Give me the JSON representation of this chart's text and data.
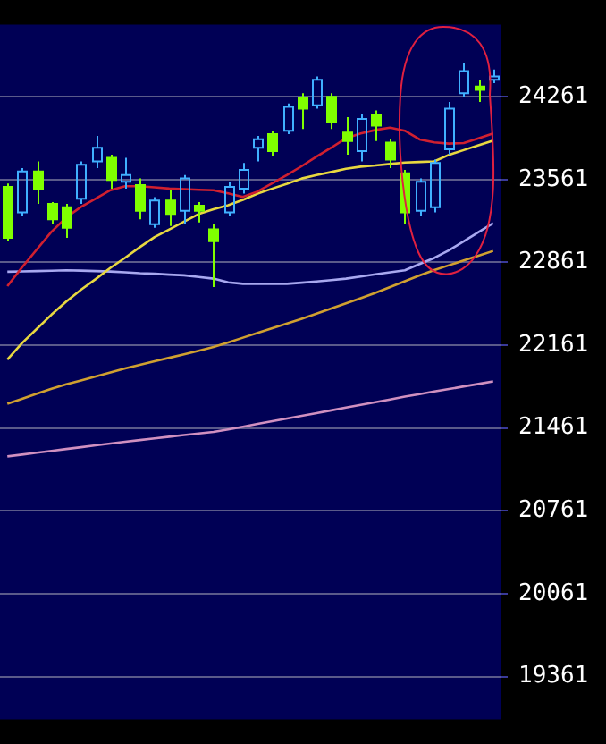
{
  "chart_data": {
    "type": "candlestick",
    "categories": [
      null,
      null,
      null,
      null,
      null,
      null,
      null,
      null,
      null,
      null,
      null,
      null,
      null,
      null,
      null,
      null,
      null,
      null,
      null,
      null,
      null,
      null,
      null,
      null,
      null,
      null,
      null,
      null,
      null,
      null,
      null,
      null,
      null,
      null
    ],
    "ohlc": [
      [
        23499,
        23528,
        23040,
        23068
      ],
      [
        23284,
        23658,
        23255,
        23629
      ],
      [
        23629,
        23715,
        23356,
        23485
      ],
      [
        23356,
        23370,
        23183,
        23226
      ],
      [
        23327,
        23356,
        23068,
        23154
      ],
      [
        23399,
        23715,
        23356,
        23686
      ],
      [
        23715,
        23930,
        23658,
        23830
      ],
      [
        23744,
        23772,
        23485,
        23557
      ],
      [
        23543,
        23744,
        23485,
        23600
      ],
      [
        23514,
        23571,
        23226,
        23298
      ],
      [
        23183,
        23413,
        23154,
        23384
      ],
      [
        23384,
        23471,
        23169,
        23270
      ],
      [
        23298,
        23600,
        23183,
        23571
      ],
      [
        23341,
        23370,
        23198,
        23298
      ],
      [
        23140,
        23183,
        22652,
        23040
      ],
      [
        23284,
        23543,
        23255,
        23499
      ],
      [
        23485,
        23701,
        23442,
        23643
      ],
      [
        23830,
        23930,
        23715,
        23902
      ],
      [
        23945,
        23974,
        23758,
        23801
      ],
      [
        23974,
        24204,
        23945,
        24175
      ],
      [
        24247,
        24290,
        23988,
        24160
      ],
      [
        24189,
        24433,
        24160,
        24405
      ],
      [
        24261,
        24290,
        23988,
        24045
      ],
      [
        23959,
        24089,
        23772,
        23887
      ],
      [
        23801,
        24117,
        23715,
        24074
      ],
      [
        24103,
        24146,
        23887,
        24017
      ],
      [
        23873,
        23902,
        23658,
        23729
      ],
      [
        23614,
        23643,
        23183,
        23284
      ],
      [
        23298,
        23571,
        23255,
        23543
      ],
      [
        23327,
        23729,
        23284,
        23701
      ],
      [
        23816,
        24218,
        23772,
        24160
      ],
      [
        24290,
        24548,
        24261,
        24477
      ],
      [
        24347,
        24405,
        24218,
        24319
      ],
      [
        24405,
        24491,
        24376,
        24433
      ]
    ],
    "colors": [
      "#80ff00",
      "#40b0ff",
      "#80ff00",
      "#80ff00",
      "#80ff00",
      "#40b0ff",
      "#40b0ff",
      "#80ff00",
      "#40b0ff",
      "#80ff00",
      "#40b0ff",
      "#80ff00",
      "#40b0ff",
      "#80ff00",
      "#80ff00",
      "#40b0ff",
      "#40b0ff",
      "#40b0ff",
      "#80ff00",
      "#40b0ff",
      "#80ff00",
      "#40b0ff",
      "#80ff00",
      "#80ff00",
      "#40b0ff",
      "#80ff00",
      "#80ff00",
      "#80ff00",
      "#40b0ff",
      "#40b0ff",
      "#40b0ff",
      "#40b0ff",
      "#80ff00",
      "#40b0ff"
    ],
    "series": [
      {
        "type": "line",
        "color": "#d02030",
        "values": [
          22660,
          22820,
          22970,
          23120,
          23240,
          23330,
          23400,
          23471,
          23505,
          23505,
          23495,
          23485,
          23480,
          23475,
          23471,
          23445,
          23415,
          23460,
          23530,
          23600,
          23675,
          23755,
          23830,
          23910,
          23950,
          23980,
          24000,
          23974,
          23900,
          23875,
          23865,
          23870,
          23910,
          23950
        ]
      },
      {
        "type": "line",
        "color": "#e8d840",
        "values": [
          22040,
          22180,
          22300,
          22420,
          22530,
          22630,
          22720,
          22815,
          22900,
          22990,
          23075,
          23140,
          23205,
          23270,
          23310,
          23345,
          23390,
          23442,
          23485,
          23525,
          23570,
          23600,
          23625,
          23652,
          23670,
          23680,
          23693,
          23705,
          23710,
          23715,
          23770,
          23810,
          23850,
          23890
        ]
      },
      {
        "type": "line",
        "color": "#a8a8f0",
        "values": [
          22782,
          22785,
          22788,
          22791,
          22794,
          22792,
          22788,
          22784,
          22778,
          22770,
          22765,
          22758,
          22752,
          22738,
          22724,
          22693,
          22680,
          22680,
          22680,
          22680,
          22690,
          22700,
          22712,
          22724,
          22742,
          22760,
          22778,
          22795,
          22847,
          22899,
          22963,
          23040,
          23117,
          23193
        ]
      },
      {
        "type": "line",
        "color": "#d0a030",
        "values": [
          21667,
          21709,
          21751,
          21793,
          21831,
          21864,
          21898,
          21932,
          21965,
          21995,
          22025,
          22055,
          22085,
          22115,
          22146,
          22185,
          22225,
          22265,
          22305,
          22345,
          22385,
          22428,
          22472,
          22515,
          22558,
          22604,
          22653,
          22702,
          22751,
          22797,
          22837,
          22878,
          22918,
          22958
        ]
      },
      {
        "type": "line",
        "color": "#d090c0",
        "values": [
          21222,
          21237,
          21253,
          21268,
          21284,
          21299,
          21315,
          21330,
          21346,
          21360,
          21374,
          21388,
          21402,
          21416,
          21429,
          21450,
          21472,
          21496,
          21519,
          21542,
          21565,
          21588,
          21611,
          21634,
          21657,
          21680,
          21703,
          21727,
          21748,
          21770,
          21791,
          21813,
          21834,
          21855
        ]
      }
    ],
    "ylim": [
      19000,
      24870
    ],
    "yticks": [
      19361,
      20061,
      20761,
      21461,
      22161,
      22861,
      23561,
      24261
    ],
    "tick_labels": "y",
    "grid": "y",
    "legend": false
  }
}
